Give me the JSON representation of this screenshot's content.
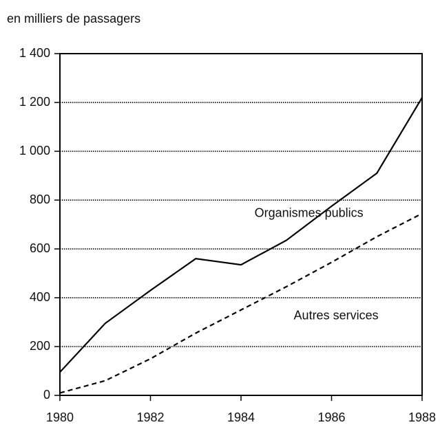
{
  "chart_data": {
    "type": "line",
    "y_axis_label": "en milliers de passagers",
    "x": [
      1980,
      1981,
      1982,
      1983,
      1984,
      1985,
      1986,
      1987,
      1988
    ],
    "series": [
      {
        "name": "Organismes publics",
        "color": "#000000",
        "style": "solid",
        "values": [
          95,
          295,
          430,
          560,
          535,
          635,
          775,
          910,
          1220
        ]
      },
      {
        "name": "Autres services",
        "color": "#000000",
        "style": "dashed",
        "values": [
          10,
          60,
          150,
          255,
          350,
          445,
          545,
          650,
          745
        ]
      }
    ],
    "xlim": [
      1980,
      1988
    ],
    "xticks": [
      1980,
      1982,
      1984,
      1986,
      1988
    ],
    "ylim": [
      0,
      1400
    ],
    "yticks": [
      0,
      200,
      400,
      600,
      800,
      {
        "value": 1000,
        "label": "1 000"
      },
      {
        "value": 1200,
        "label": "1 200"
      },
      {
        "value": 1400,
        "label": "1 400"
      }
    ],
    "grid": true
  }
}
